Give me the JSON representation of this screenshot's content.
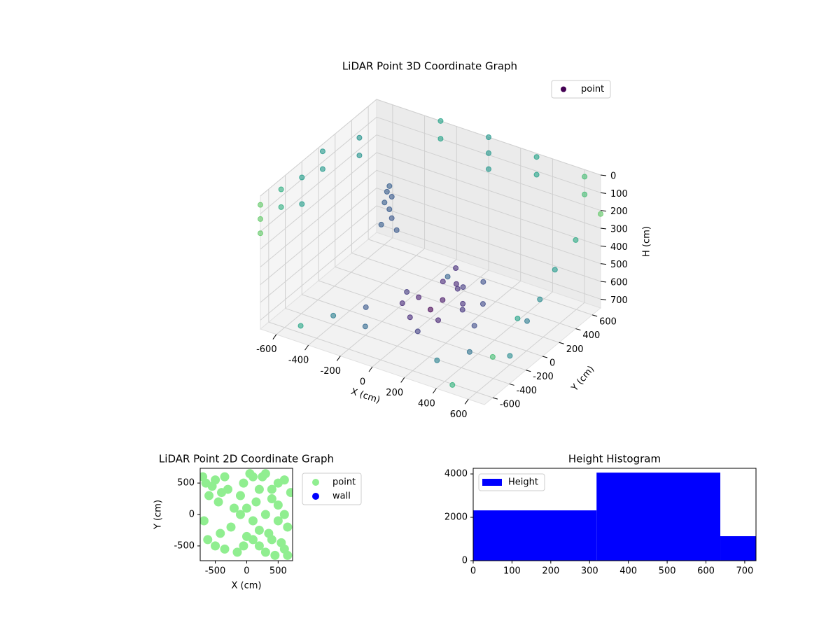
{
  "chart_data": [
    {
      "type": "scatter3d",
      "title": "LiDAR Point 3D Coordinate Graph",
      "xlabel": "X (cm)",
      "ylabel": "Y (cm)",
      "zlabel": "H (cm)",
      "xlim": [
        -700,
        700
      ],
      "ylim": [
        -700,
        700
      ],
      "zlim": [
        750,
        0
      ],
      "xticks": [
        -600,
        -400,
        -200,
        0,
        200,
        400,
        600
      ],
      "yticks": [
        -600,
        -400,
        -200,
        0,
        200,
        400,
        600
      ],
      "zticks": [
        0,
        100,
        200,
        300,
        400,
        500,
        600,
        700
      ],
      "colormap": "viridis",
      "color_by": "distance",
      "legend": "upper right",
      "grid": true,
      "series": [
        {
          "name": "point",
          "color": "#440154",
          "x": [
            -700,
            -700,
            -700,
            -700,
            -700,
            -700,
            -700,
            -700,
            -700,
            -600,
            -600,
            -300,
            -300,
            0,
            0,
            0,
            300,
            300,
            600,
            600,
            700,
            700,
            700,
            700,
            700,
            500,
            0,
            50,
            -100,
            100,
            150,
            -50,
            200,
            100,
            0,
            -150,
            250,
            300,
            50,
            -200,
            200,
            120,
            180,
            80,
            -350,
            -330,
            -360,
            -340,
            -320,
            -350,
            -370,
            -310,
            -400,
            -300,
            400,
            500,
            -500,
            300,
            600,
            -200,
            450,
            -100
          ],
          "y": [
            -700,
            -700,
            -700,
            -450,
            -450,
            -200,
            -200,
            50,
            50,
            300,
            300,
            700,
            700,
            700,
            700,
            700,
            700,
            700,
            700,
            700,
            700,
            400,
            150,
            -300,
            -600,
            -700,
            0,
            50,
            50,
            -100,
            100,
            -150,
            0,
            200,
            150,
            -50,
            150,
            -50,
            -250,
            100,
            250,
            80,
            -20,
            150,
            150,
            170,
            140,
            160,
            150,
            180,
            120,
            190,
            -400,
            -200,
            -300,
            200,
            -600,
            -500,
            -200,
            -400,
            450,
            400
          ],
          "z": [
            50,
            130,
            210,
            60,
            160,
            90,
            240,
            40,
            140,
            30,
            130,
            0,
            100,
            0,
            90,
            180,
            20,
            120,
            40,
            140,
            220,
            250,
            320,
            420,
            520,
            700,
            700,
            650,
            680,
            690,
            660,
            700,
            640,
            620,
            600,
            690,
            650,
            680,
            710,
            700,
            580,
            550,
            520,
            500,
            200,
            230,
            260,
            300,
            340,
            180,
            380,
            420,
            700,
            700,
            700,
            690,
            710,
            700,
            700,
            700,
            680,
            700
          ]
        }
      ]
    },
    {
      "type": "scatter",
      "title": "LiDAR Point 2D Coordinate Graph",
      "xlabel": "X (cm)",
      "ylabel": "Y (cm)",
      "xlim": [
        -740,
        730
      ],
      "ylim": [
        -735,
        735
      ],
      "xticks": [
        -500,
        0,
        500
      ],
      "yticks": [
        -500,
        0,
        500
      ],
      "legend": "outside right",
      "series": [
        {
          "name": "point",
          "color": "#90ee90",
          "x": [
            -700,
            -650,
            -600,
            -550,
            -500,
            -450,
            -400,
            -350,
            -300,
            -680,
            -620,
            -500,
            -420,
            -350,
            -250,
            -200,
            -150,
            -100,
            -50,
            0,
            50,
            100,
            150,
            200,
            250,
            300,
            350,
            400,
            450,
            500,
            550,
            600,
            650,
            700,
            0,
            100,
            200,
            300,
            400,
            500,
            600,
            100,
            200,
            300,
            400,
            500,
            600,
            650,
            -100,
            -50
          ],
          "y": [
            600,
            500,
            300,
            450,
            550,
            200,
            350,
            600,
            400,
            -100,
            -400,
            -500,
            -300,
            -550,
            -200,
            100,
            -600,
            300,
            500,
            -350,
            650,
            -100,
            200,
            -500,
            600,
            0,
            -300,
            400,
            -650,
            150,
            -450,
            550,
            -200,
            350,
            100,
            600,
            -250,
            -600,
            250,
            -100,
            -550,
            -400,
            400,
            650,
            -400,
            500,
            0,
            -650,
            0,
            -500
          ]
        },
        {
          "name": "wall",
          "color": "#0000ff",
          "x": [],
          "y": []
        }
      ]
    },
    {
      "type": "histogram",
      "title": "Height Histogram",
      "bins": [
        0,
        318,
        637,
        729
      ],
      "xlim": [
        0,
        729
      ],
      "ylim": [
        0,
        4260
      ],
      "xticks": [
        0,
        100,
        200,
        300,
        400,
        500,
        600,
        700
      ],
      "yticks": [
        0,
        2000,
        4000
      ],
      "legend": "upper left",
      "series": [
        {
          "name": "Height",
          "color": "#0000ff",
          "values": [
            2320,
            4060,
            1130
          ]
        }
      ]
    }
  ]
}
